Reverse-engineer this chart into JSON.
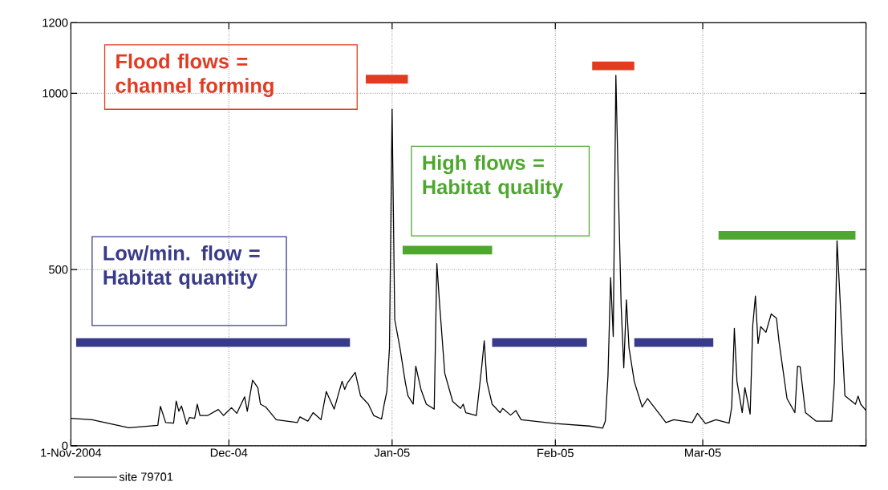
{
  "chart_data": {
    "type": "line",
    "xlim": [
      "2004-11-01",
      "2005-04-01"
    ],
    "ylim": [
      0,
      1200
    ],
    "xticks": [
      {
        "value": "2004-11-01",
        "label": "1-Nov-2004"
      },
      {
        "value": "2004-12-01",
        "label": "Dec-04"
      },
      {
        "value": "2005-01-01",
        "label": "Jan-05"
      },
      {
        "value": "2005-02-01",
        "label": "Feb-05"
      },
      {
        "value": "2005-03-01",
        "label": "Mar-05"
      },
      {
        "value": "2005-04-01",
        "label": null
      }
    ],
    "yticks": [
      0,
      500,
      1000,
      1200
    ],
    "grid": true,
    "legend": "bottom left",
    "marker": "none",
    "line_style": "solid",
    "annotations": [
      "Flood flows = channel forming",
      "High flows = Habitat quality",
      "Low/min. flow = Habitat quantity"
    ],
    "series": [
      {
        "name": "site 79701",
        "color": "#000000",
        "x": [
          "2004-11-01",
          "2004-11-05",
          "2004-11-12",
          "2004-11-17T12:00",
          "2004-11-18",
          "2004-11-19",
          "2004-11-20T12:00",
          "2004-11-21",
          "2004-11-21T12:00",
          "2004-11-22",
          "2004-11-23",
          "2004-11-23T12:00",
          "2004-11-24T12:00",
          "2004-11-25",
          "2004-11-25T12:00",
          "2004-11-27",
          "2004-11-29",
          "2004-11-30",
          "2004-12-01T12:00",
          "2004-12-02T12:00",
          "2004-12-04",
          "2004-12-04T12:00",
          "2004-12-05T12:00",
          "2004-12-06T12:00",
          "2004-12-07",
          "2004-12-08",
          "2004-12-10",
          "2004-12-14",
          "2004-12-14T12:00",
          "2004-12-16",
          "2004-12-17",
          "2004-12-18T12:00",
          "2004-12-19T12:00",
          "2004-12-21",
          "2004-12-22T12:00",
          "2004-12-23",
          "2004-12-23T12:00",
          "2004-12-25",
          "2004-12-26",
          "2004-12-27T12:00",
          "2004-12-28T12:00",
          "2004-12-30",
          "2004-12-30T12:00",
          "2004-12-31",
          "2004-12-31T12:00",
          "2005-01-01",
          "2005-01-01T12:00",
          "2005-01-02T12:00",
          "2005-01-03T12:00",
          "2005-01-04",
          "2005-01-05",
          "2005-01-05T12:00",
          "2005-01-06T12:00",
          "2005-01-07T12:00",
          "2005-01-09",
          "2005-01-09T12:00",
          "2005-01-10",
          "2005-01-11",
          "2005-01-12T12:00",
          "2005-01-14",
          "2005-01-14T12:00",
          "2005-01-15",
          "2005-01-17",
          "2005-01-18",
          "2005-01-18T12:00",
          "2005-01-19",
          "2005-01-20",
          "2005-01-21T12:00",
          "2005-01-22",
          "2005-01-23T12:00",
          "2005-01-24T12:00",
          "2005-01-25T12:00",
          "2005-02-01",
          "2005-02-07T12:00",
          "2005-02-10",
          "2005-02-10T12:00",
          "2005-02-11",
          "2005-02-11T12:00",
          "2005-02-12",
          "2005-02-12T12:00",
          "2005-02-13",
          "2005-02-13T12:00",
          "2005-02-14",
          "2005-02-14T12:00",
          "2005-02-15",
          "2005-02-16",
          "2005-02-17T12:00",
          "2005-02-18T12:00",
          "2005-02-21",
          "2005-02-22",
          "2005-02-23T12:00",
          "2005-02-27",
          "2005-02-28",
          "2005-03-01T12:00",
          "2005-03-03T12:00",
          "2005-03-06",
          "2005-03-06T12:00",
          "2005-03-07",
          "2005-03-07T12:00",
          "2005-03-08T12:00",
          "2005-03-09",
          "2005-03-10",
          "2005-03-10T12:00",
          "2005-03-11",
          "2005-03-11T12:00",
          "2005-03-12",
          "2005-03-13",
          "2005-03-14",
          "2005-03-15",
          "2005-03-15T12:00",
          "2005-03-17",
          "2005-03-18T12:00",
          "2005-03-19",
          "2005-03-19T12:00",
          "2005-03-20T12:00",
          "2005-03-22T12:00",
          "2005-03-25T12:00",
          "2005-03-26",
          "2005-03-26T12:00",
          "2005-03-27",
          "2005-03-28",
          "2005-03-30",
          "2005-03-30T12:00",
          "2005-03-31",
          "2005-04-01"
        ],
        "values": [
          78,
          74,
          51,
          58,
          112,
          66,
          64,
          127,
          98,
          113,
          61,
          80,
          78,
          118,
          86,
          86,
          103,
          86,
          108,
          92,
          139,
          98,
          186,
          165,
          118,
          110,
          74,
          66,
          82,
          70,
          94,
          74,
          154,
          104,
          183,
          160,
          178,
          208,
          142,
          118,
          86,
          76,
          118,
          154,
          277,
          955,
          358,
          277,
          181,
          142,
          118,
          226,
          159,
          118,
          104,
          517,
          406,
          206,
          126,
          106,
          118,
          94,
          86,
          221,
          298,
          182,
          118,
          94,
          106,
          87,
          100,
          74,
          63,
          56,
          50,
          70,
          198,
          477,
          310,
          1051,
          709,
          398,
          221,
          414,
          277,
          182,
          110,
          134,
          86,
          66,
          74,
          66,
          92,
          63,
          74,
          64,
          110,
          333,
          182,
          94,
          165,
          90,
          342,
          425,
          290,
          338,
          322,
          374,
          362,
          294,
          134,
          94,
          226,
          224,
          94,
          70,
          70,
          182,
          582,
          438,
          142,
          118,
          141,
          118,
          100
        ]
      },
      {
        "color": "#e33b22",
        "x": [
          "2004-12-27",
          "2005-01-04"
        ],
        "values": [
          1040,
          1040
        ]
      },
      {
        "color": "#e33b22",
        "x": [
          "2005-02-08",
          "2005-02-16"
        ],
        "values": [
          1078,
          1078
        ]
      },
      {
        "color": "#4ea72e",
        "x": [
          "2005-01-03",
          "2005-01-20"
        ],
        "values": [
          555,
          555
        ]
      },
      {
        "color": "#4ea72e",
        "x": [
          "2005-03-04",
          "2005-03-30"
        ],
        "values": [
          597,
          597
        ]
      },
      {
        "color": "#383a8a",
        "x": [
          "2004-11-02",
          "2004-12-24"
        ],
        "values": [
          293,
          293
        ]
      },
      {
        "color": "#383a8a",
        "x": [
          "2005-01-20",
          "2005-02-07"
        ],
        "values": [
          293,
          293
        ]
      },
      {
        "color": "#383a8a",
        "x": [
          "2005-02-16",
          "2005-03-03"
        ],
        "values": [
          293,
          293
        ]
      }
    ]
  }
}
